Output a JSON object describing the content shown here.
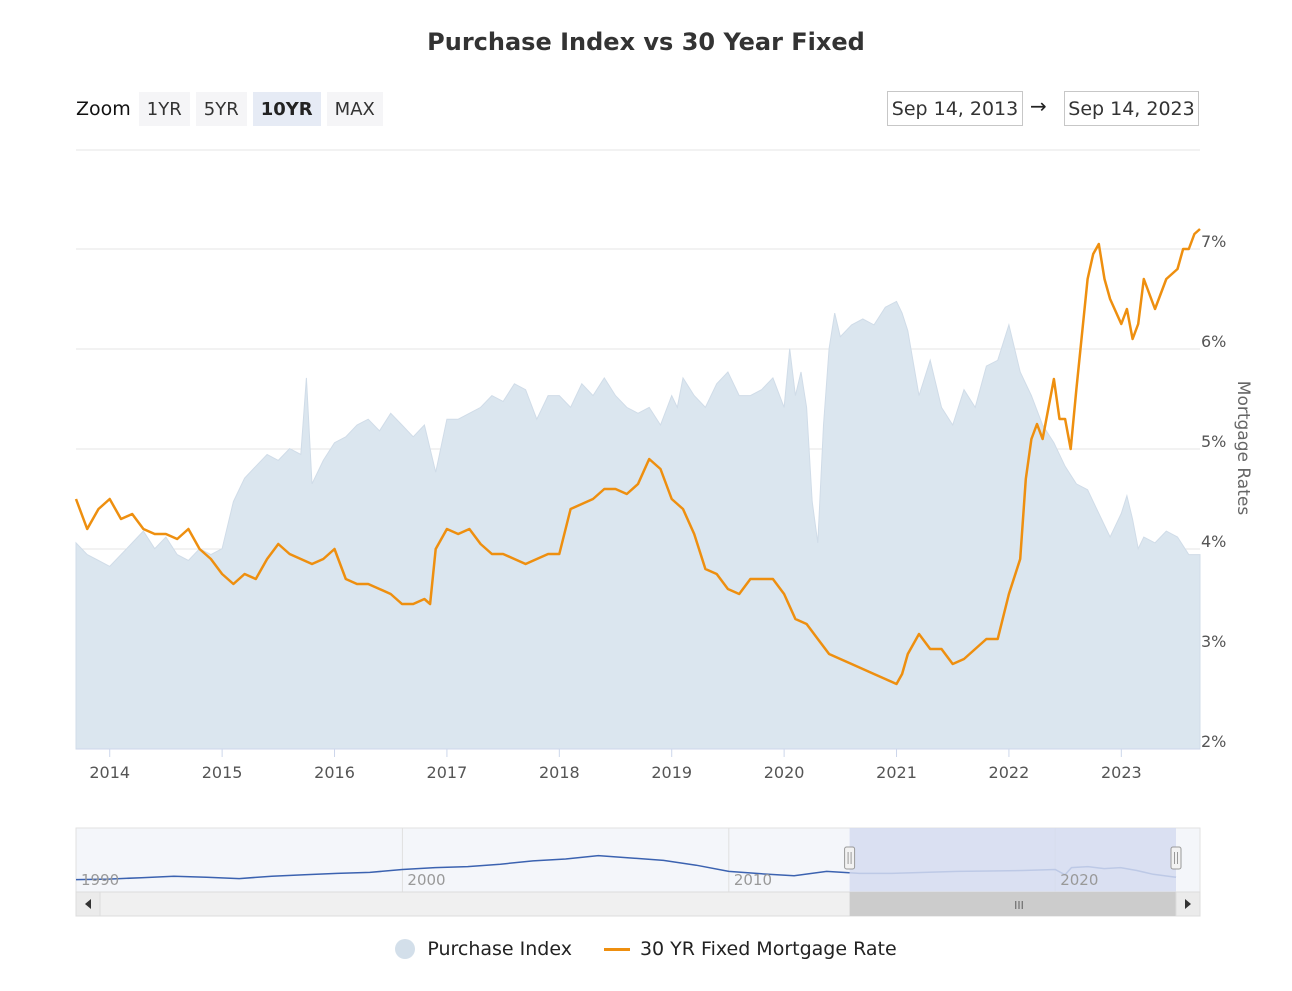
{
  "title": "Purchase Index vs 30 Year Fixed",
  "zoom": {
    "label": "Zoom",
    "buttons": [
      {
        "label": "1YR",
        "active": false
      },
      {
        "label": "5YR",
        "active": false
      },
      {
        "label": "10YR",
        "active": true
      },
      {
        "label": "MAX",
        "active": false
      }
    ]
  },
  "range": {
    "from": "Sep 14, 2013",
    "arrow": "→",
    "to": "Sep 14, 2023"
  },
  "colors": {
    "purchase_index": "#dbe6ef",
    "mortgage_rate": "#ee8f0f",
    "navigator_line": "#3b62b0",
    "navigator_mask": "#d5dcf0"
  },
  "chart_data": {
    "type": "line",
    "x_range": [
      2013.7,
      2023.7
    ],
    "x_ticks": [
      "2014",
      "2015",
      "2016",
      "2017",
      "2018",
      "2019",
      "2020",
      "2021",
      "2022",
      "2023"
    ],
    "y_right": {
      "label": "Mortgage Rates",
      "range": [
        2,
        8
      ],
      "ticks": [
        "2%",
        "3%",
        "4%",
        "5%",
        "6%",
        "7%"
      ]
    },
    "grid": true,
    "series": [
      {
        "name": "Purchase Index",
        "kind": "area",
        "axis": "hidden",
        "range": [
          0,
          1
        ],
        "x": [
          2013.7,
          2013.8,
          2013.9,
          2014.0,
          2014.1,
          2014.2,
          2014.3,
          2014.4,
          2014.5,
          2014.6,
          2014.7,
          2014.8,
          2014.9,
          2015.0,
          2015.1,
          2015.2,
          2015.3,
          2015.4,
          2015.5,
          2015.6,
          2015.7,
          2015.75,
          2015.8,
          2015.9,
          2016.0,
          2016.1,
          2016.2,
          2016.3,
          2016.4,
          2016.5,
          2016.6,
          2016.7,
          2016.8,
          2016.9,
          2017.0,
          2017.1,
          2017.2,
          2017.3,
          2017.4,
          2017.5,
          2017.6,
          2017.7,
          2017.8,
          2017.9,
          2018.0,
          2018.1,
          2018.2,
          2018.3,
          2018.4,
          2018.5,
          2018.6,
          2018.7,
          2018.8,
          2018.9,
          2019.0,
          2019.05,
          2019.1,
          2019.2,
          2019.3,
          2019.4,
          2019.5,
          2019.6,
          2019.7,
          2019.8,
          2019.9,
          2020.0,
          2020.05,
          2020.1,
          2020.15,
          2020.2,
          2020.25,
          2020.3,
          2020.35,
          2020.4,
          2020.45,
          2020.5,
          2020.6,
          2020.7,
          2020.8,
          2020.9,
          2021.0,
          2021.05,
          2021.1,
          2021.2,
          2021.3,
          2021.4,
          2021.5,
          2021.6,
          2021.7,
          2021.8,
          2021.9,
          2022.0,
          2022.1,
          2022.2,
          2022.3,
          2022.4,
          2022.5,
          2022.6,
          2022.7,
          2022.8,
          2022.9,
          2023.0,
          2023.05,
          2023.1,
          2023.15,
          2023.2,
          2023.3,
          2023.4,
          2023.5,
          2023.6,
          2023.7
        ],
        "values": [
          0.35,
          0.33,
          0.32,
          0.31,
          0.33,
          0.35,
          0.37,
          0.34,
          0.36,
          0.33,
          0.32,
          0.34,
          0.33,
          0.34,
          0.42,
          0.46,
          0.48,
          0.5,
          0.49,
          0.51,
          0.5,
          0.63,
          0.45,
          0.49,
          0.52,
          0.53,
          0.55,
          0.56,
          0.54,
          0.57,
          0.55,
          0.53,
          0.55,
          0.47,
          0.56,
          0.56,
          0.57,
          0.58,
          0.6,
          0.59,
          0.62,
          0.61,
          0.56,
          0.6,
          0.6,
          0.58,
          0.62,
          0.6,
          0.63,
          0.6,
          0.58,
          0.57,
          0.58,
          0.55,
          0.6,
          0.58,
          0.63,
          0.6,
          0.58,
          0.62,
          0.64,
          0.6,
          0.6,
          0.61,
          0.63,
          0.58,
          0.68,
          0.6,
          0.64,
          0.58,
          0.42,
          0.35,
          0.55,
          0.68,
          0.74,
          0.7,
          0.72,
          0.73,
          0.72,
          0.75,
          0.76,
          0.74,
          0.71,
          0.6,
          0.66,
          0.58,
          0.55,
          0.61,
          0.58,
          0.65,
          0.66,
          0.72,
          0.64,
          0.6,
          0.55,
          0.52,
          0.48,
          0.45,
          0.44,
          0.4,
          0.36,
          0.4,
          0.43,
          0.39,
          0.34,
          0.36,
          0.35,
          0.37,
          0.36,
          0.33,
          0.33
        ]
      },
      {
        "name": "30 YR Fixed Mortgage Rate",
        "kind": "line",
        "axis": "right",
        "x": [
          2013.7,
          2013.8,
          2013.9,
          2014.0,
          2014.1,
          2014.2,
          2014.3,
          2014.4,
          2014.5,
          2014.6,
          2014.7,
          2014.8,
          2014.9,
          2015.0,
          2015.1,
          2015.2,
          2015.3,
          2015.4,
          2015.5,
          2015.6,
          2015.7,
          2015.8,
          2015.9,
          2016.0,
          2016.1,
          2016.2,
          2016.3,
          2016.4,
          2016.5,
          2016.6,
          2016.7,
          2016.8,
          2016.85,
          2016.9,
          2017.0,
          2017.1,
          2017.2,
          2017.3,
          2017.4,
          2017.5,
          2017.6,
          2017.7,
          2017.8,
          2017.9,
          2018.0,
          2018.1,
          2018.2,
          2018.3,
          2018.4,
          2018.5,
          2018.6,
          2018.7,
          2018.8,
          2018.9,
          2019.0,
          2019.1,
          2019.2,
          2019.3,
          2019.4,
          2019.5,
          2019.6,
          2019.7,
          2019.8,
          2019.9,
          2020.0,
          2020.1,
          2020.2,
          2020.3,
          2020.4,
          2020.5,
          2020.6,
          2020.7,
          2020.8,
          2020.9,
          2021.0,
          2021.05,
          2021.1,
          2021.2,
          2021.3,
          2021.4,
          2021.5,
          2021.6,
          2021.7,
          2021.8,
          2021.9,
          2022.0,
          2022.1,
          2022.15,
          2022.2,
          2022.25,
          2022.3,
          2022.4,
          2022.45,
          2022.5,
          2022.55,
          2022.6,
          2022.7,
          2022.75,
          2022.8,
          2022.85,
          2022.9,
          2023.0,
          2023.05,
          2023.1,
          2023.15,
          2023.2,
          2023.3,
          2023.4,
          2023.5,
          2023.55,
          2023.6,
          2023.65,
          2023.7
        ],
        "values": [
          4.5,
          4.2,
          4.4,
          4.5,
          4.3,
          4.35,
          4.2,
          4.15,
          4.15,
          4.1,
          4.2,
          4.0,
          3.9,
          3.75,
          3.65,
          3.75,
          3.7,
          3.9,
          4.05,
          3.95,
          3.9,
          3.85,
          3.9,
          4.0,
          3.7,
          3.65,
          3.65,
          3.6,
          3.55,
          3.45,
          3.45,
          3.5,
          3.45,
          4.0,
          4.2,
          4.15,
          4.2,
          4.05,
          3.95,
          3.95,
          3.9,
          3.85,
          3.9,
          3.95,
          3.95,
          4.4,
          4.45,
          4.5,
          4.6,
          4.6,
          4.55,
          4.65,
          4.9,
          4.8,
          4.5,
          4.4,
          4.15,
          3.8,
          3.75,
          3.6,
          3.55,
          3.7,
          3.7,
          3.7,
          3.55,
          3.3,
          3.25,
          3.1,
          2.95,
          2.9,
          2.85,
          2.8,
          2.75,
          2.7,
          2.65,
          2.75,
          2.95,
          3.15,
          3.0,
          3.0,
          2.85,
          2.9,
          3.0,
          3.1,
          3.1,
          3.55,
          3.9,
          4.7,
          5.1,
          5.25,
          5.1,
          5.7,
          5.3,
          5.3,
          5.0,
          5.6,
          6.7,
          6.95,
          7.05,
          6.7,
          6.5,
          6.25,
          6.4,
          6.1,
          6.25,
          6.7,
          6.4,
          6.7,
          6.8,
          7.0,
          7.0,
          7.15,
          7.2
        ]
      }
    ],
    "navigator": {
      "x_range": [
        1990,
        2023.7
      ],
      "ticks": [
        "1990",
        "2000",
        "2010",
        "2020"
      ],
      "selected": [
        2013.7,
        2023.7
      ],
      "x": [
        1990,
        1991,
        1992,
        1993,
        1994,
        1995,
        1996,
        1997,
        1998,
        1999,
        2000,
        2001,
        2002,
        2003,
        2004,
        2005,
        2006,
        2007,
        2008,
        2009,
        2010,
        2011,
        2012,
        2013,
        2014,
        2015,
        2016,
        2017,
        2018,
        2019,
        2020,
        2020.3,
        2020.5,
        2021,
        2021.5,
        2022,
        2022.5,
        2023,
        2023.7
      ],
      "values": [
        0.05,
        0.06,
        0.09,
        0.12,
        0.1,
        0.07,
        0.12,
        0.15,
        0.18,
        0.2,
        0.26,
        0.3,
        0.32,
        0.37,
        0.44,
        0.48,
        0.55,
        0.5,
        0.45,
        0.35,
        0.22,
        0.17,
        0.13,
        0.22,
        0.18,
        0.18,
        0.2,
        0.22,
        0.23,
        0.24,
        0.26,
        0.15,
        0.3,
        0.32,
        0.28,
        0.3,
        0.24,
        0.16,
        0.1
      ]
    }
  }
}
